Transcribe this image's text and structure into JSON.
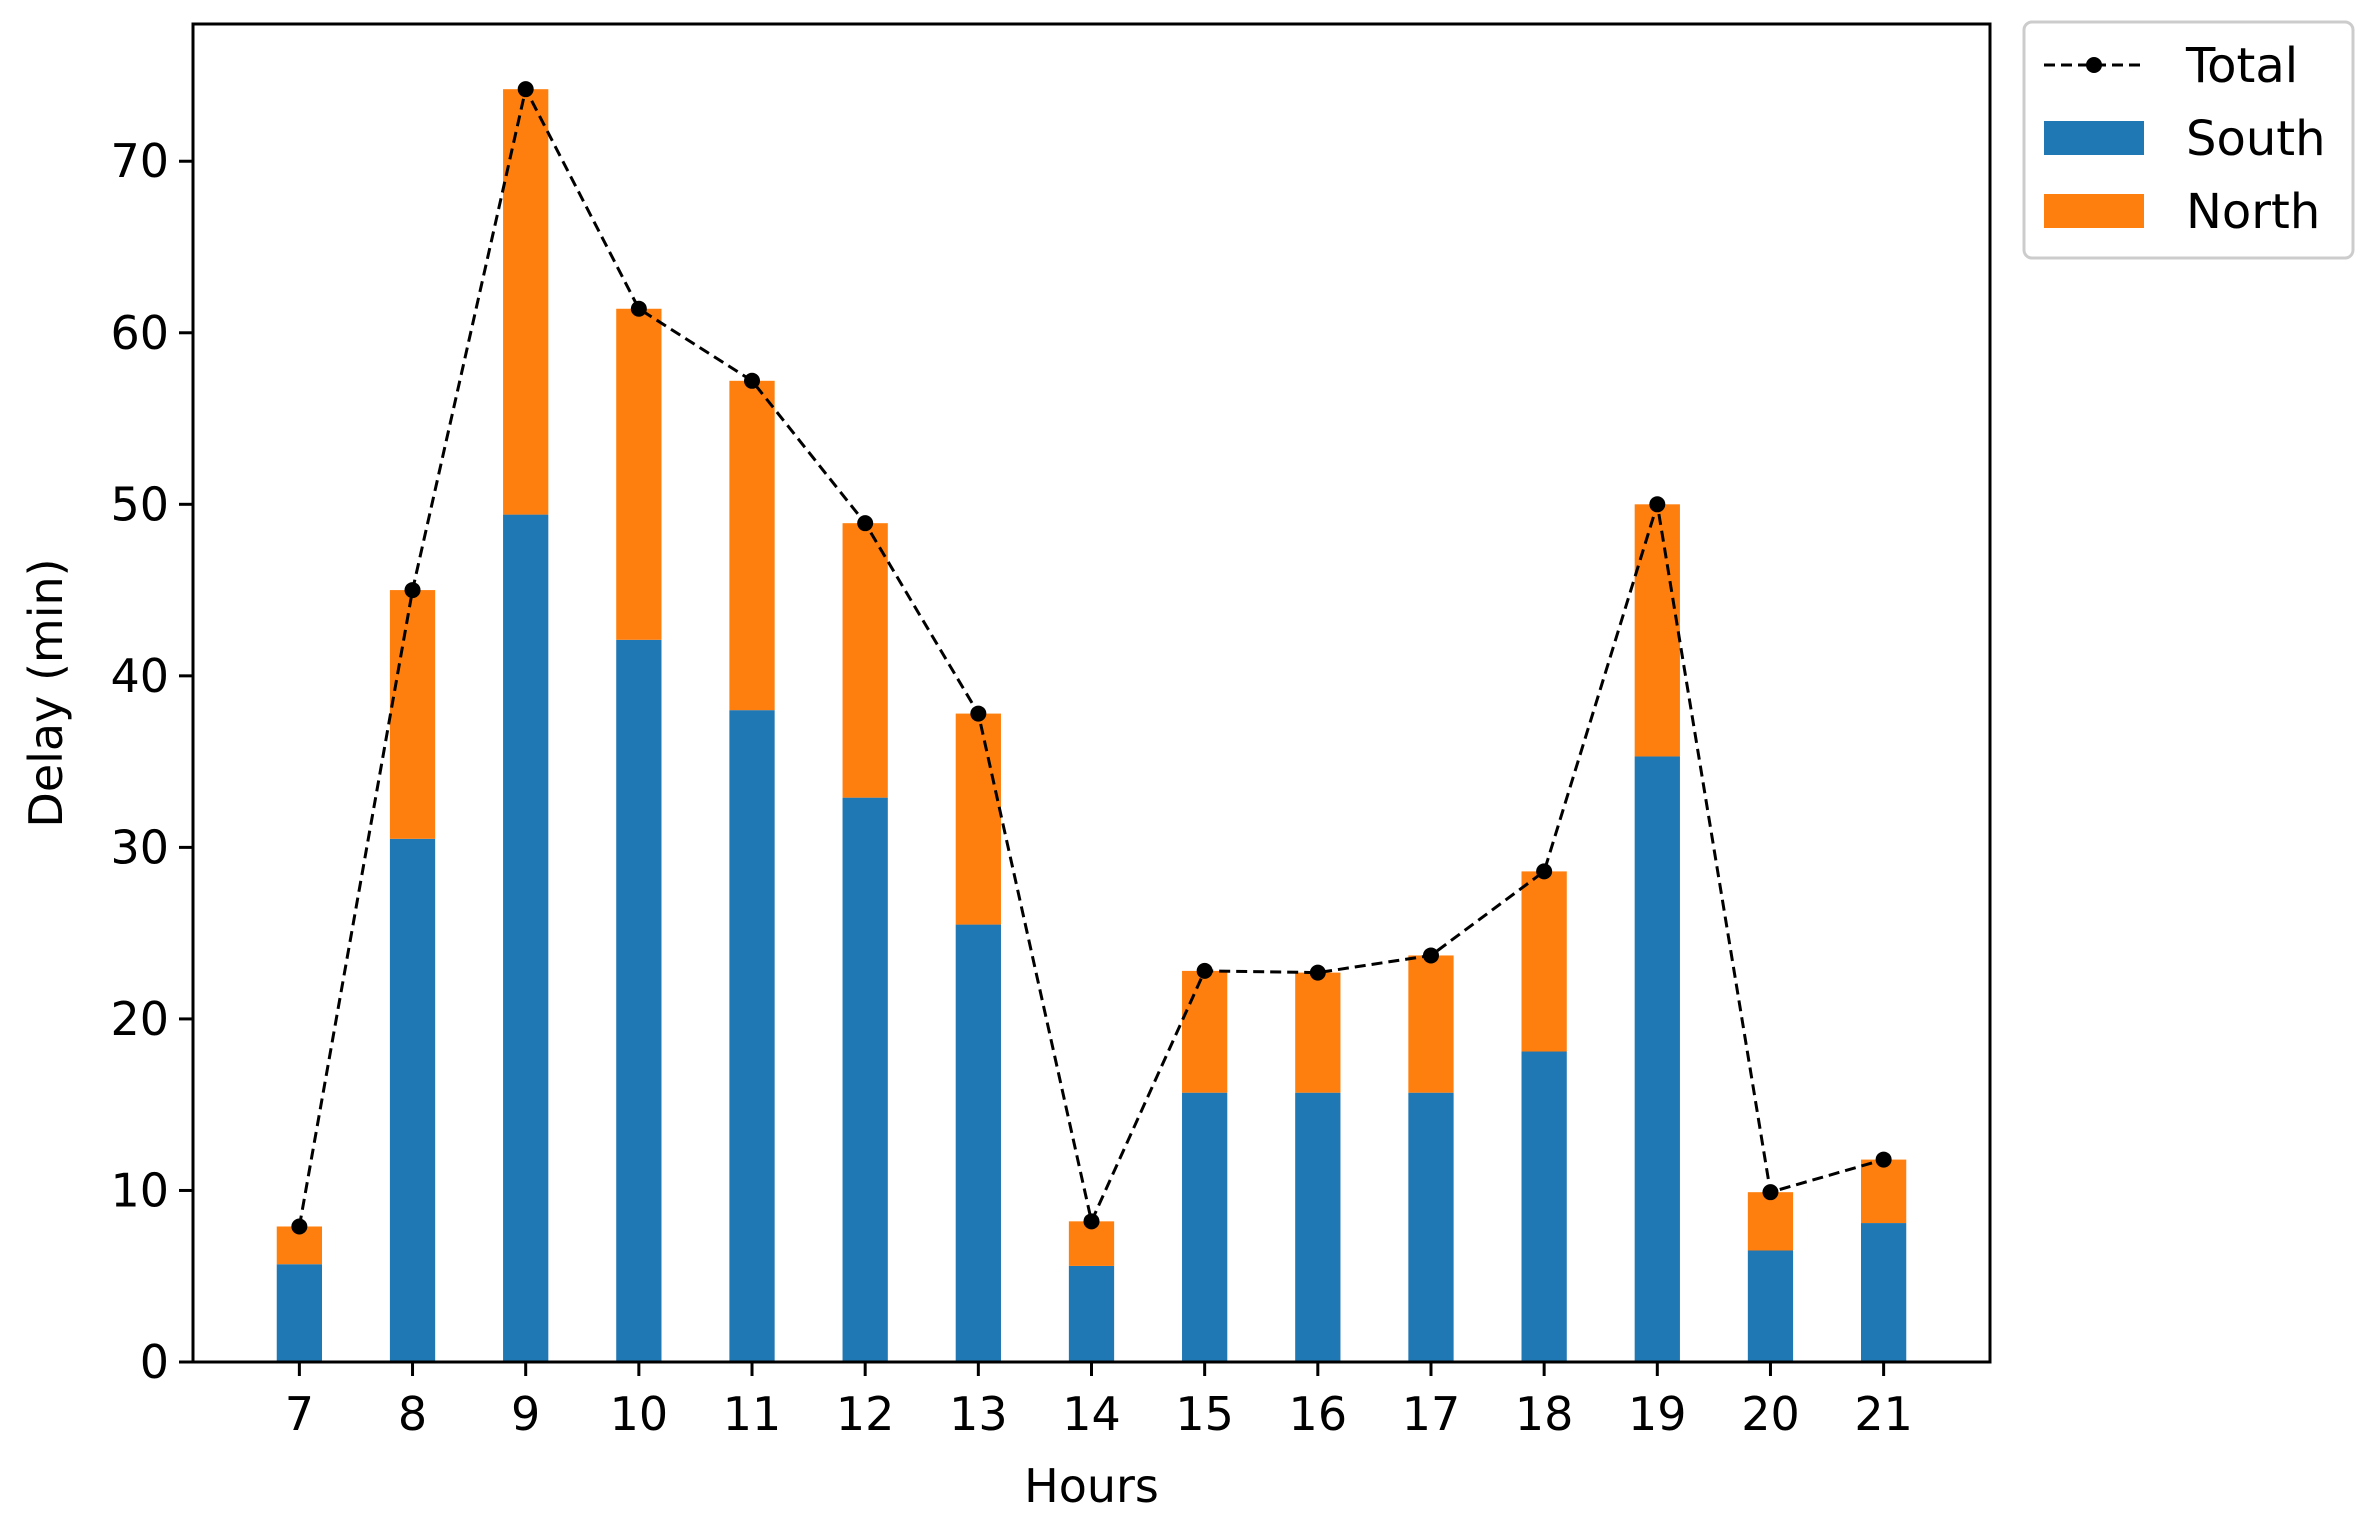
{
  "chart_data": {
    "type": "bar",
    "stacked": true,
    "xlabel": "Hours",
    "ylabel": "Delay (min)",
    "ylim": [
      0,
      78
    ],
    "yticks": [
      0,
      10,
      20,
      30,
      40,
      50,
      60,
      70
    ],
    "grid": false,
    "legend_position": "outside-top-right",
    "categories": [
      "7",
      "8",
      "9",
      "10",
      "11",
      "12",
      "13",
      "14",
      "15",
      "16",
      "17",
      "18",
      "19",
      "20",
      "21"
    ],
    "series": [
      {
        "name": "South",
        "kind": "bar",
        "color": "#1f77b4",
        "values": [
          5.7,
          30.5,
          49.4,
          42.1,
          38.0,
          32.9,
          25.5,
          5.6,
          15.7,
          15.7,
          15.7,
          18.1,
          35.3,
          6.5,
          8.1
        ]
      },
      {
        "name": "North",
        "kind": "bar",
        "color": "#ff7f0e",
        "values": [
          2.2,
          14.5,
          24.8,
          19.3,
          19.2,
          16.0,
          12.3,
          2.6,
          7.1,
          7.0,
          8.0,
          10.5,
          14.7,
          3.4,
          3.7
        ]
      },
      {
        "name": "Total",
        "kind": "line",
        "style": "dashed-with-dots",
        "color": "#000000",
        "values": [
          7.9,
          45.0,
          74.2,
          61.4,
          57.2,
          48.9,
          37.8,
          8.2,
          22.8,
          22.7,
          23.7,
          28.6,
          50.0,
          9.9,
          11.8
        ]
      }
    ],
    "legend": [
      "Total",
      "South",
      "North"
    ]
  }
}
